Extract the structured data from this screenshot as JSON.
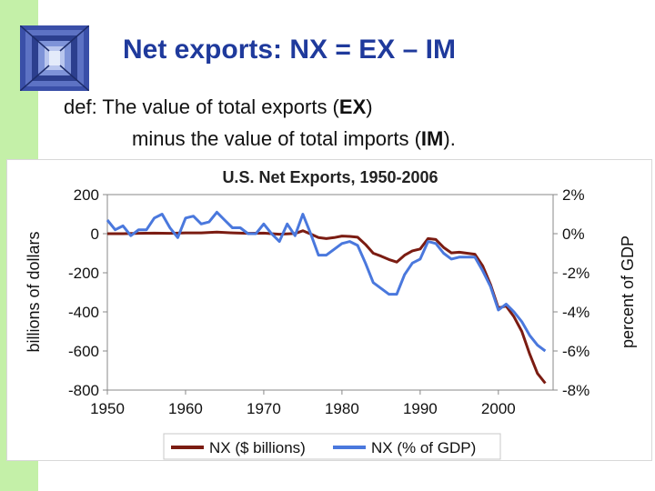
{
  "slide": {
    "title": "Net exports:  NX = EX – IM",
    "def_prefix": "def:  The value of total exports (",
    "def_ex": "EX",
    "def_mid": ")",
    "def_line2_prefix": "minus the value of total imports (",
    "def_im": "IM",
    "def_line2_suffix": ")."
  },
  "colors": {
    "accent_bar": "#c4f0a8",
    "title": "#1f3a9c",
    "nx_dollars": "#7b1c12",
    "nx_percent": "#4a78dd"
  },
  "chart_data": {
    "type": "line",
    "title": "U.S. Net Exports, 1950-2006",
    "ylabel": "billions of dollars",
    "ylabel_right": "percent of GDP",
    "xlim": [
      1950,
      2007
    ],
    "ylim": [
      -800,
      200
    ],
    "ylim_right": [
      -8,
      2
    ],
    "x_ticks": [
      1950,
      1960,
      1970,
      1980,
      1990,
      2000
    ],
    "y_ticks": [
      "200",
      "0",
      "-200",
      "-400",
      "-600",
      "-800"
    ],
    "y_ticks_right": [
      "2%",
      "0%",
      "-2%",
      "-4%",
      "-6%",
      "-8%"
    ],
    "legend_position": "bottom",
    "grid": false,
    "series": [
      {
        "name": "NX ($ billions)",
        "axis": "left",
        "color": "#7b1c12",
        "x": [
          1950,
          1952,
          1954,
          1956,
          1958,
          1960,
          1962,
          1964,
          1966,
          1968,
          1970,
          1972,
          1974,
          1975,
          1976,
          1977,
          1978,
          1979,
          1980,
          1981,
          1982,
          1983,
          1984,
          1985,
          1986,
          1987,
          1988,
          1989,
          1990,
          1991,
          1992,
          1993,
          1994,
          1995,
          1996,
          1997,
          1998,
          1999,
          2000,
          2001,
          2002,
          2003,
          2004,
          2005,
          2006
        ],
        "values": [
          0,
          0,
          2,
          3,
          2,
          4,
          4,
          8,
          4,
          2,
          3,
          -3,
          1,
          15,
          -2,
          -20,
          -25,
          -20,
          -12,
          -14,
          -18,
          -55,
          -100,
          -115,
          -132,
          -145,
          -110,
          -88,
          -78,
          -25,
          -30,
          -70,
          -98,
          -95,
          -100,
          -105,
          -165,
          -260,
          -380,
          -370,
          -425,
          -500,
          -615,
          -715,
          -765
        ]
      },
      {
        "name": "NX (% of GDP)",
        "axis": "right",
        "color": "#4a78dd",
        "x": [
          1950,
          1951,
          1952,
          1953,
          1954,
          1955,
          1956,
          1957,
          1958,
          1959,
          1960,
          1961,
          1962,
          1963,
          1964,
          1965,
          1966,
          1967,
          1968,
          1969,
          1970,
          1971,
          1972,
          1973,
          1974,
          1975,
          1976,
          1977,
          1978,
          1979,
          1980,
          1981,
          1982,
          1983,
          1984,
          1985,
          1986,
          1987,
          1988,
          1989,
          1990,
          1991,
          1992,
          1993,
          1994,
          1995,
          1996,
          1997,
          1998,
          1999,
          2000,
          2001,
          2002,
          2003,
          2004,
          2005,
          2006
        ],
        "values": [
          0.7,
          0.2,
          0.4,
          -0.1,
          0.2,
          0.2,
          0.8,
          1.0,
          0.3,
          -0.2,
          0.8,
          0.9,
          0.5,
          0.6,
          1.1,
          0.7,
          0.3,
          0.3,
          0.0,
          0.0,
          0.5,
          0.0,
          -0.4,
          0.5,
          -0.1,
          1.0,
          0.0,
          -1.1,
          -1.1,
          -0.8,
          -0.5,
          -0.4,
          -0.6,
          -1.5,
          -2.5,
          -2.8,
          -3.1,
          -3.1,
          -2.1,
          -1.5,
          -1.3,
          -0.4,
          -0.5,
          -1.0,
          -1.3,
          -1.2,
          -1.2,
          -1.2,
          -1.9,
          -2.7,
          -3.9,
          -3.6,
          -4.0,
          -4.5,
          -5.2,
          -5.7,
          -6.0
        ]
      }
    ]
  }
}
